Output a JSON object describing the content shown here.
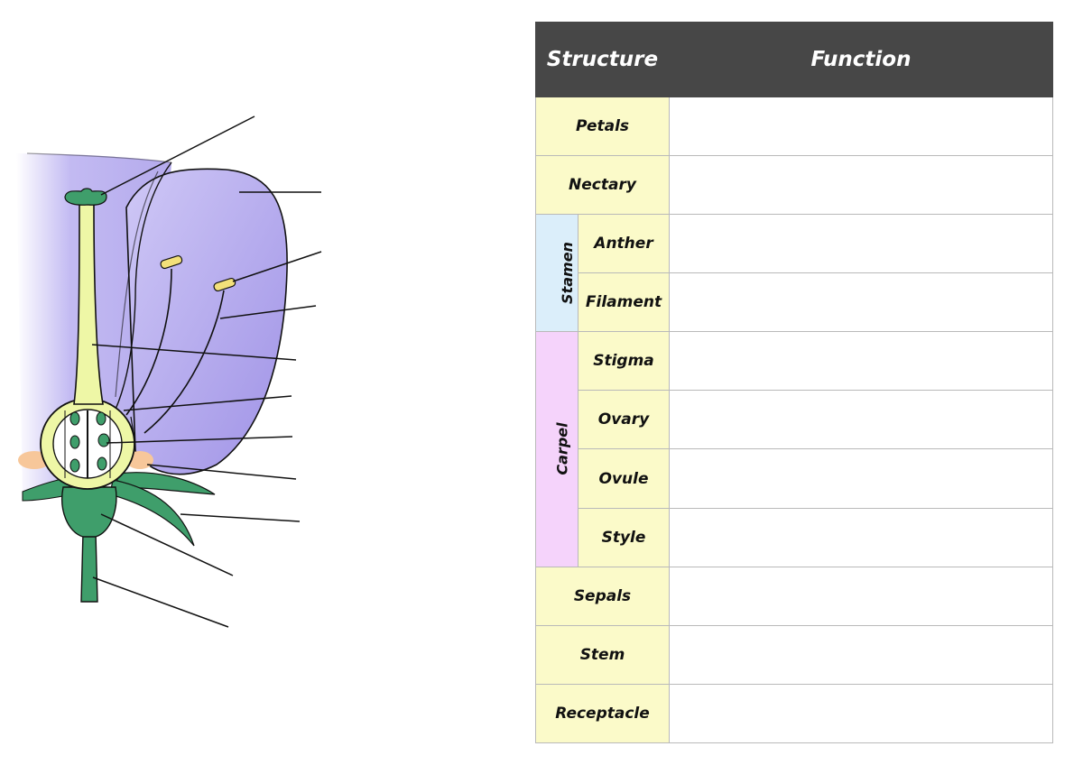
{
  "colors": {
    "header_bg": "#474747",
    "structure_bg": "#fbfac9",
    "stamen_bg": "#dbeefa",
    "carpel_bg": "#f5d3fb",
    "petal": "#b9b0f0",
    "pistil": "#eef7a6",
    "stem": "#3f9e6b",
    "anther": "#f3e07a",
    "nectary": "#f7c79a"
  },
  "table": {
    "header": {
      "structure": "Structure",
      "function": "Function"
    },
    "rows": [
      {
        "structure": "Petals",
        "group": "",
        "function": ""
      },
      {
        "structure": "Nectary",
        "group": "",
        "function": ""
      },
      {
        "structure": "Anther",
        "group": "Stamen",
        "function": ""
      },
      {
        "structure": "Filament",
        "group": "Stamen",
        "function": ""
      },
      {
        "structure": "Stigma",
        "group": "Carpel",
        "function": ""
      },
      {
        "structure": "Ovary",
        "group": "Carpel",
        "function": ""
      },
      {
        "structure": "Ovule",
        "group": "Carpel",
        "function": ""
      },
      {
        "structure": "Style",
        "group": "Carpel",
        "function": ""
      },
      {
        "structure": "Sepals",
        "group": "",
        "function": ""
      },
      {
        "structure": "Stem",
        "group": "",
        "function": ""
      },
      {
        "structure": "Receptacle",
        "group": "",
        "function": ""
      }
    ],
    "groups": {
      "stamen": "Stamen",
      "carpel": "Carpel"
    }
  }
}
